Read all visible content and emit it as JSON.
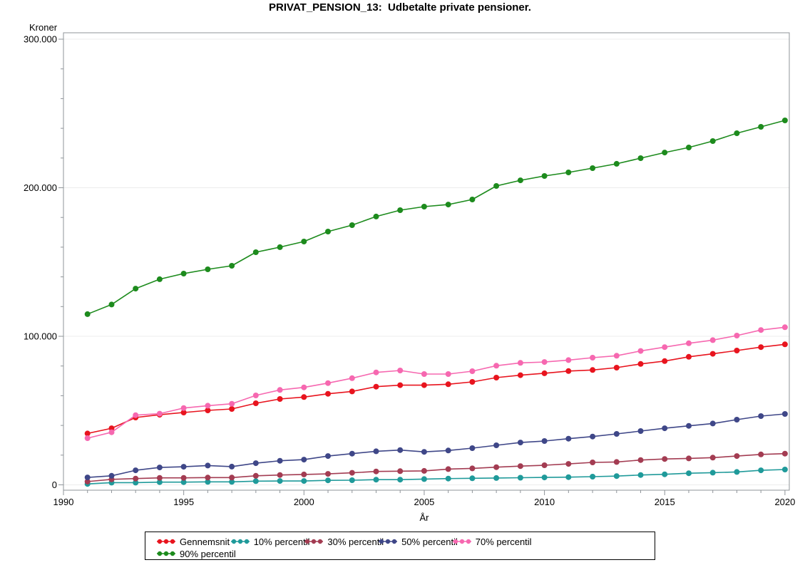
{
  "title": "PRIVAT_PENSION_13:  Udbetalte private pensioner.",
  "colors": {
    "grid": "#ececec",
    "axis_border": "#8f9499",
    "tick": "#8f9499",
    "text": "#000000"
  },
  "chart_data": {
    "type": "line",
    "title": "PRIVAT_PENSION_13:  Udbetalte private pensioner.",
    "xlabel": "År",
    "ylabel": "Kroner",
    "xlim": [
      1990,
      2020.2
    ],
    "ylim": [
      0,
      300000
    ],
    "grid": "horizontal-major",
    "legend_position": "bottom",
    "x": [
      1991,
      1992,
      1993,
      1994,
      1995,
      1996,
      1997,
      1998,
      1999,
      2000,
      2001,
      2002,
      2003,
      2004,
      2005,
      2006,
      2007,
      2008,
      2009,
      2010,
      2011,
      2012,
      2013,
      2014,
      2015,
      2016,
      2017,
      2018,
      2019,
      2020
    ],
    "x_ticks": [
      {
        "value": 1990,
        "label": "1990"
      },
      {
        "value": 1995,
        "label": "1995"
      },
      {
        "value": 2000,
        "label": "2000"
      },
      {
        "value": 2005,
        "label": "2005"
      },
      {
        "value": 2010,
        "label": "2010"
      },
      {
        "value": 2015,
        "label": "2015"
      },
      {
        "value": 2020,
        "label": "2020"
      }
    ],
    "x_minor_step": 1,
    "y_ticks": [
      {
        "value": 0,
        "label": "0"
      },
      {
        "value": 100000,
        "label": "100.000"
      },
      {
        "value": 200000,
        "label": "200.000"
      },
      {
        "value": 300000,
        "label": "300.000"
      }
    ],
    "y_minor_step": 20000,
    "series": [
      {
        "id": "gennemsnit",
        "name": "Gennemsnit",
        "color": "#e8141e",
        "values": [
          34600,
          38100,
          45300,
          47200,
          48700,
          50100,
          51100,
          54900,
          57800,
          59100,
          61300,
          62900,
          66100,
          67100,
          67100,
          67700,
          69300,
          72200,
          73800,
          75100,
          76600,
          77300,
          78900,
          81400,
          83300,
          86200,
          88200,
          90400,
          92700,
          94600
        ]
      },
      {
        "id": "p10",
        "name": "10% percentil",
        "color": "#1f9a9a",
        "values": [
          600,
          1500,
          1500,
          1800,
          1800,
          2000,
          2000,
          2500,
          2600,
          2600,
          3000,
          3100,
          3500,
          3500,
          3900,
          4200,
          4400,
          4600,
          4800,
          5000,
          5200,
          5500,
          5900,
          6600,
          7100,
          7800,
          8200,
          8700,
          9800,
          10300
        ]
      },
      {
        "id": "p30",
        "name": "30% percentil",
        "color": "#a33c52",
        "values": [
          2200,
          3700,
          4200,
          4700,
          4700,
          4900,
          4900,
          6100,
          6600,
          7000,
          7400,
          8100,
          9000,
          9200,
          9400,
          10600,
          11100,
          11900,
          12600,
          13200,
          14100,
          15100,
          15400,
          16700,
          17400,
          17800,
          18300,
          19400,
          20500,
          21000
        ]
      },
      {
        "id": "p50",
        "name": "50% percentil",
        "color": "#3f4788",
        "values": [
          5000,
          6100,
          9800,
          11700,
          12200,
          13000,
          12300,
          14600,
          16200,
          17000,
          19400,
          21000,
          22600,
          23400,
          22200,
          23100,
          24700,
          26600,
          28500,
          29500,
          31100,
          32500,
          34300,
          36200,
          38100,
          39700,
          41300,
          43900,
          46300,
          47700
        ]
      },
      {
        "id": "p70",
        "name": "70% percentil",
        "color": "#f668b0",
        "values": [
          31400,
          35400,
          46900,
          47900,
          51700,
          53300,
          54600,
          60200,
          63900,
          65600,
          68500,
          71800,
          75700,
          77000,
          74600,
          74600,
          76500,
          80200,
          82100,
          82700,
          84000,
          85600,
          86900,
          90100,
          92700,
          95300,
          97400,
          100500,
          104200,
          106100
        ]
      },
      {
        "id": "p90",
        "name": "90% percentil",
        "color": "#1d8b1d",
        "values": [
          114900,
          121400,
          132100,
          138400,
          142200,
          145100,
          147500,
          156600,
          160000,
          163800,
          170500,
          174800,
          180600,
          184900,
          187300,
          188700,
          192100,
          201200,
          205000,
          207900,
          210300,
          213200,
          216100,
          219900,
          223700,
          227100,
          231400,
          236700,
          241000,
          245300
        ]
      }
    ]
  }
}
